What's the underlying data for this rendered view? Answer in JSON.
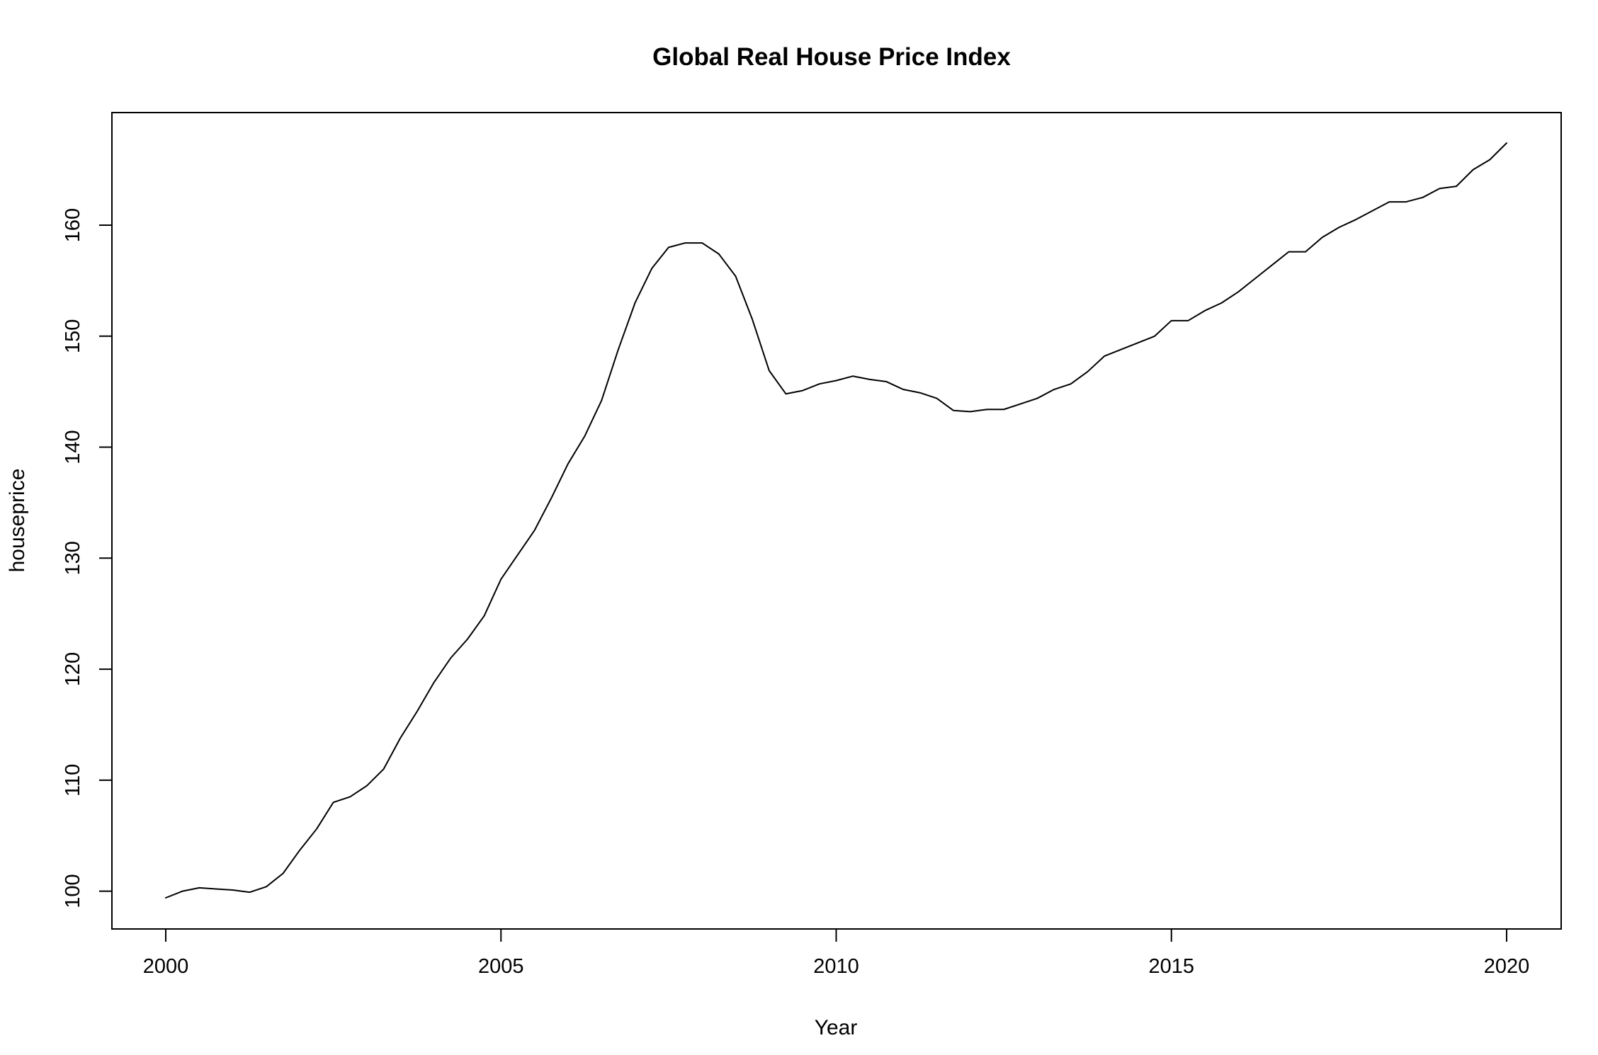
{
  "chart_data": {
    "type": "line",
    "title": "Global Real House Price Index",
    "xlabel": "Year",
    "ylabel": "houseprice",
    "xlim": [
      2000,
      2020
    ],
    "ylim": [
      99.4,
      167.4
    ],
    "x_ticks": [
      2000,
      2005,
      2010,
      2015,
      2020
    ],
    "y_ticks": [
      100,
      110,
      120,
      130,
      140,
      150,
      160
    ],
    "grid": false,
    "legend": "none",
    "line_color": "#000000",
    "series": [
      {
        "x": [
          2000.0,
          2000.25,
          2000.5,
          2000.75,
          2001.0,
          2001.25,
          2001.5,
          2001.75,
          2002.0,
          2002.25,
          2002.5,
          2002.75,
          2003.0,
          2003.25,
          2003.5,
          2003.75,
          2004.0,
          2004.25,
          2004.5,
          2004.75,
          2005.0,
          2005.25,
          2005.5,
          2005.75,
          2006.0,
          2006.25,
          2006.5,
          2006.75,
          2007.0,
          2007.25,
          2007.5,
          2007.75,
          2008.0,
          2008.25,
          2008.5,
          2008.75,
          2009.0,
          2009.25,
          2009.5,
          2009.75,
          2010.0,
          2010.25,
          2010.5,
          2010.75,
          2011.0,
          2011.25,
          2011.5,
          2011.75,
          2012.0,
          2012.25,
          2012.5,
          2012.75,
          2013.0,
          2013.25,
          2013.5,
          2013.75,
          2014.0,
          2014.25,
          2014.5,
          2014.75,
          2015.0,
          2015.25,
          2015.5,
          2015.75,
          2016.0,
          2016.25,
          2016.5,
          2016.75,
          2017.0,
          2017.25,
          2017.5,
          2017.75,
          2018.0,
          2018.25,
          2018.5,
          2018.75,
          2019.0,
          2019.25,
          2019.5,
          2019.75,
          2020.0
        ],
        "values": [
          99.4,
          100.0,
          100.3,
          100.2,
          100.1,
          99.9,
          100.4,
          101.6,
          103.7,
          105.6,
          108.0,
          108.5,
          109.5,
          111.0,
          113.8,
          116.2,
          118.8,
          121.0,
          122.7,
          124.8,
          128.1,
          130.3,
          132.5,
          135.4,
          138.5,
          141.0,
          144.2,
          148.8,
          153.0,
          156.1,
          158.0,
          158.4,
          158.4,
          157.4,
          155.4,
          151.5,
          146.9,
          144.8,
          145.1,
          145.7,
          146.0,
          146.4,
          146.1,
          145.9,
          145.2,
          144.9,
          144.4,
          143.3,
          143.2,
          143.4,
          143.4,
          143.9,
          144.4,
          145.2,
          145.7,
          146.8,
          148.2,
          148.8,
          149.4,
          150.0,
          151.4,
          151.4,
          152.3,
          153.0,
          154.0,
          155.2,
          156.4,
          157.6,
          157.6,
          158.9,
          159.8,
          160.5,
          161.3,
          162.1,
          162.1,
          162.5,
          163.3,
          163.5,
          165.0,
          165.9,
          167.4
        ]
      }
    ]
  }
}
